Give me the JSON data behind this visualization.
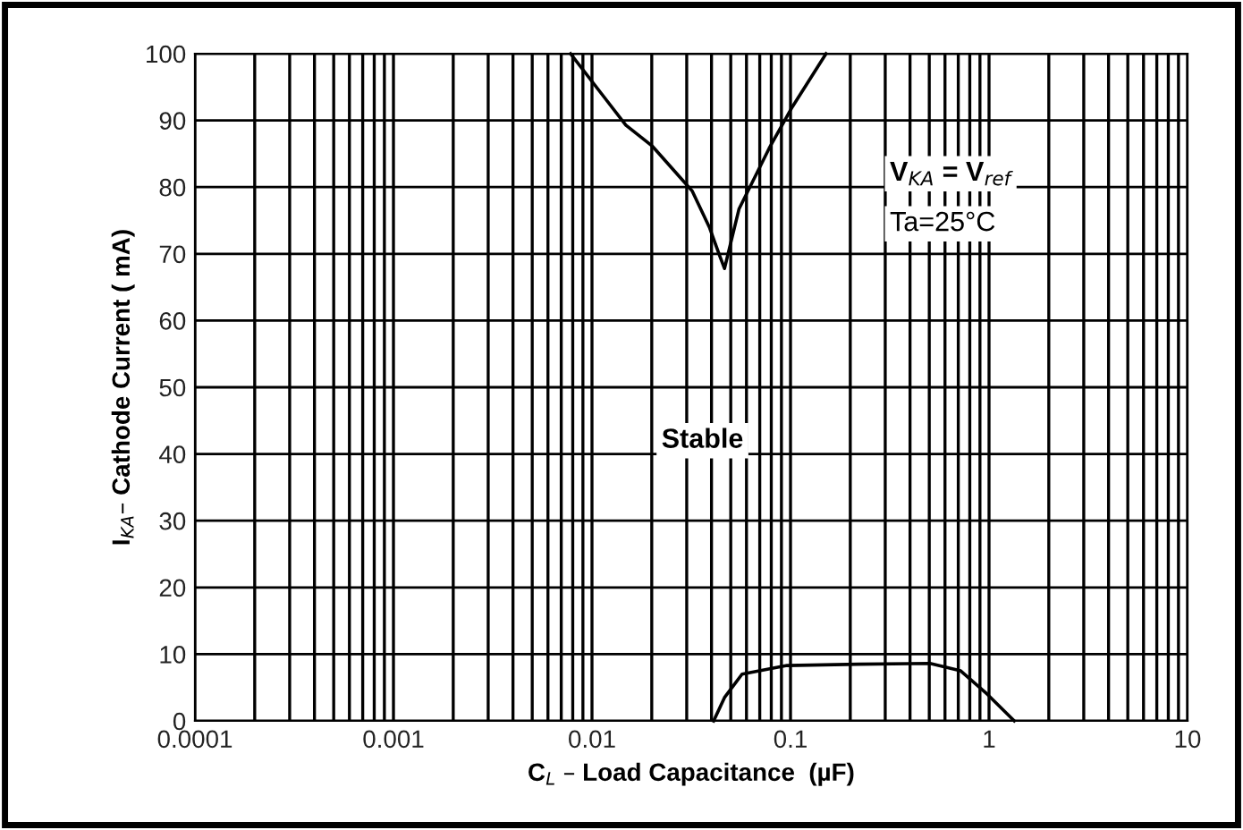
{
  "chart_data": {
    "type": "line",
    "xlabel": "C$_{L}$ – Load Capacitance  (µF)",
    "ylabel": "I$_{KA}$– Cathode Current ( mA)",
    "log": "x",
    "xlim": [
      0.0001,
      10
    ],
    "xticks": [
      0.0001,
      0.001,
      0.01,
      0.1,
      1,
      10
    ],
    "ylim": [
      0,
      100
    ],
    "yticks": [
      0,
      10,
      20,
      30,
      40,
      50,
      60,
      70,
      80,
      90,
      100
    ],
    "grid": true,
    "legend": false,
    "marker": "none",
    "line_style": "solid",
    "series": [
      {
        "color": "#000000",
        "x": [
          0.0078,
          0.0113,
          0.0148,
          0.0202,
          0.032,
          0.039,
          0.044,
          0.0465,
          0.055,
          0.078,
          0.102,
          0.151
        ],
        "values": [
          100,
          93.8,
          89.3,
          86.1,
          79.4,
          74,
          69.7,
          67.8,
          76.7,
          85.8,
          92,
          100
        ]
      },
      {
        "color": "#000000",
        "x": [
          0.041,
          0.0465,
          0.057,
          0.096,
          0.22,
          0.505,
          0.72,
          0.98,
          1.34
        ],
        "values": [
          0,
          3.5,
          7,
          8.3,
          8.5,
          8.6,
          7.5,
          4,
          0
        ]
      }
    ],
    "annotations": [
      "Stable",
      "V$_{KA}$ = V$_{ref}$",
      "Ta=25°C"
    ]
  }
}
